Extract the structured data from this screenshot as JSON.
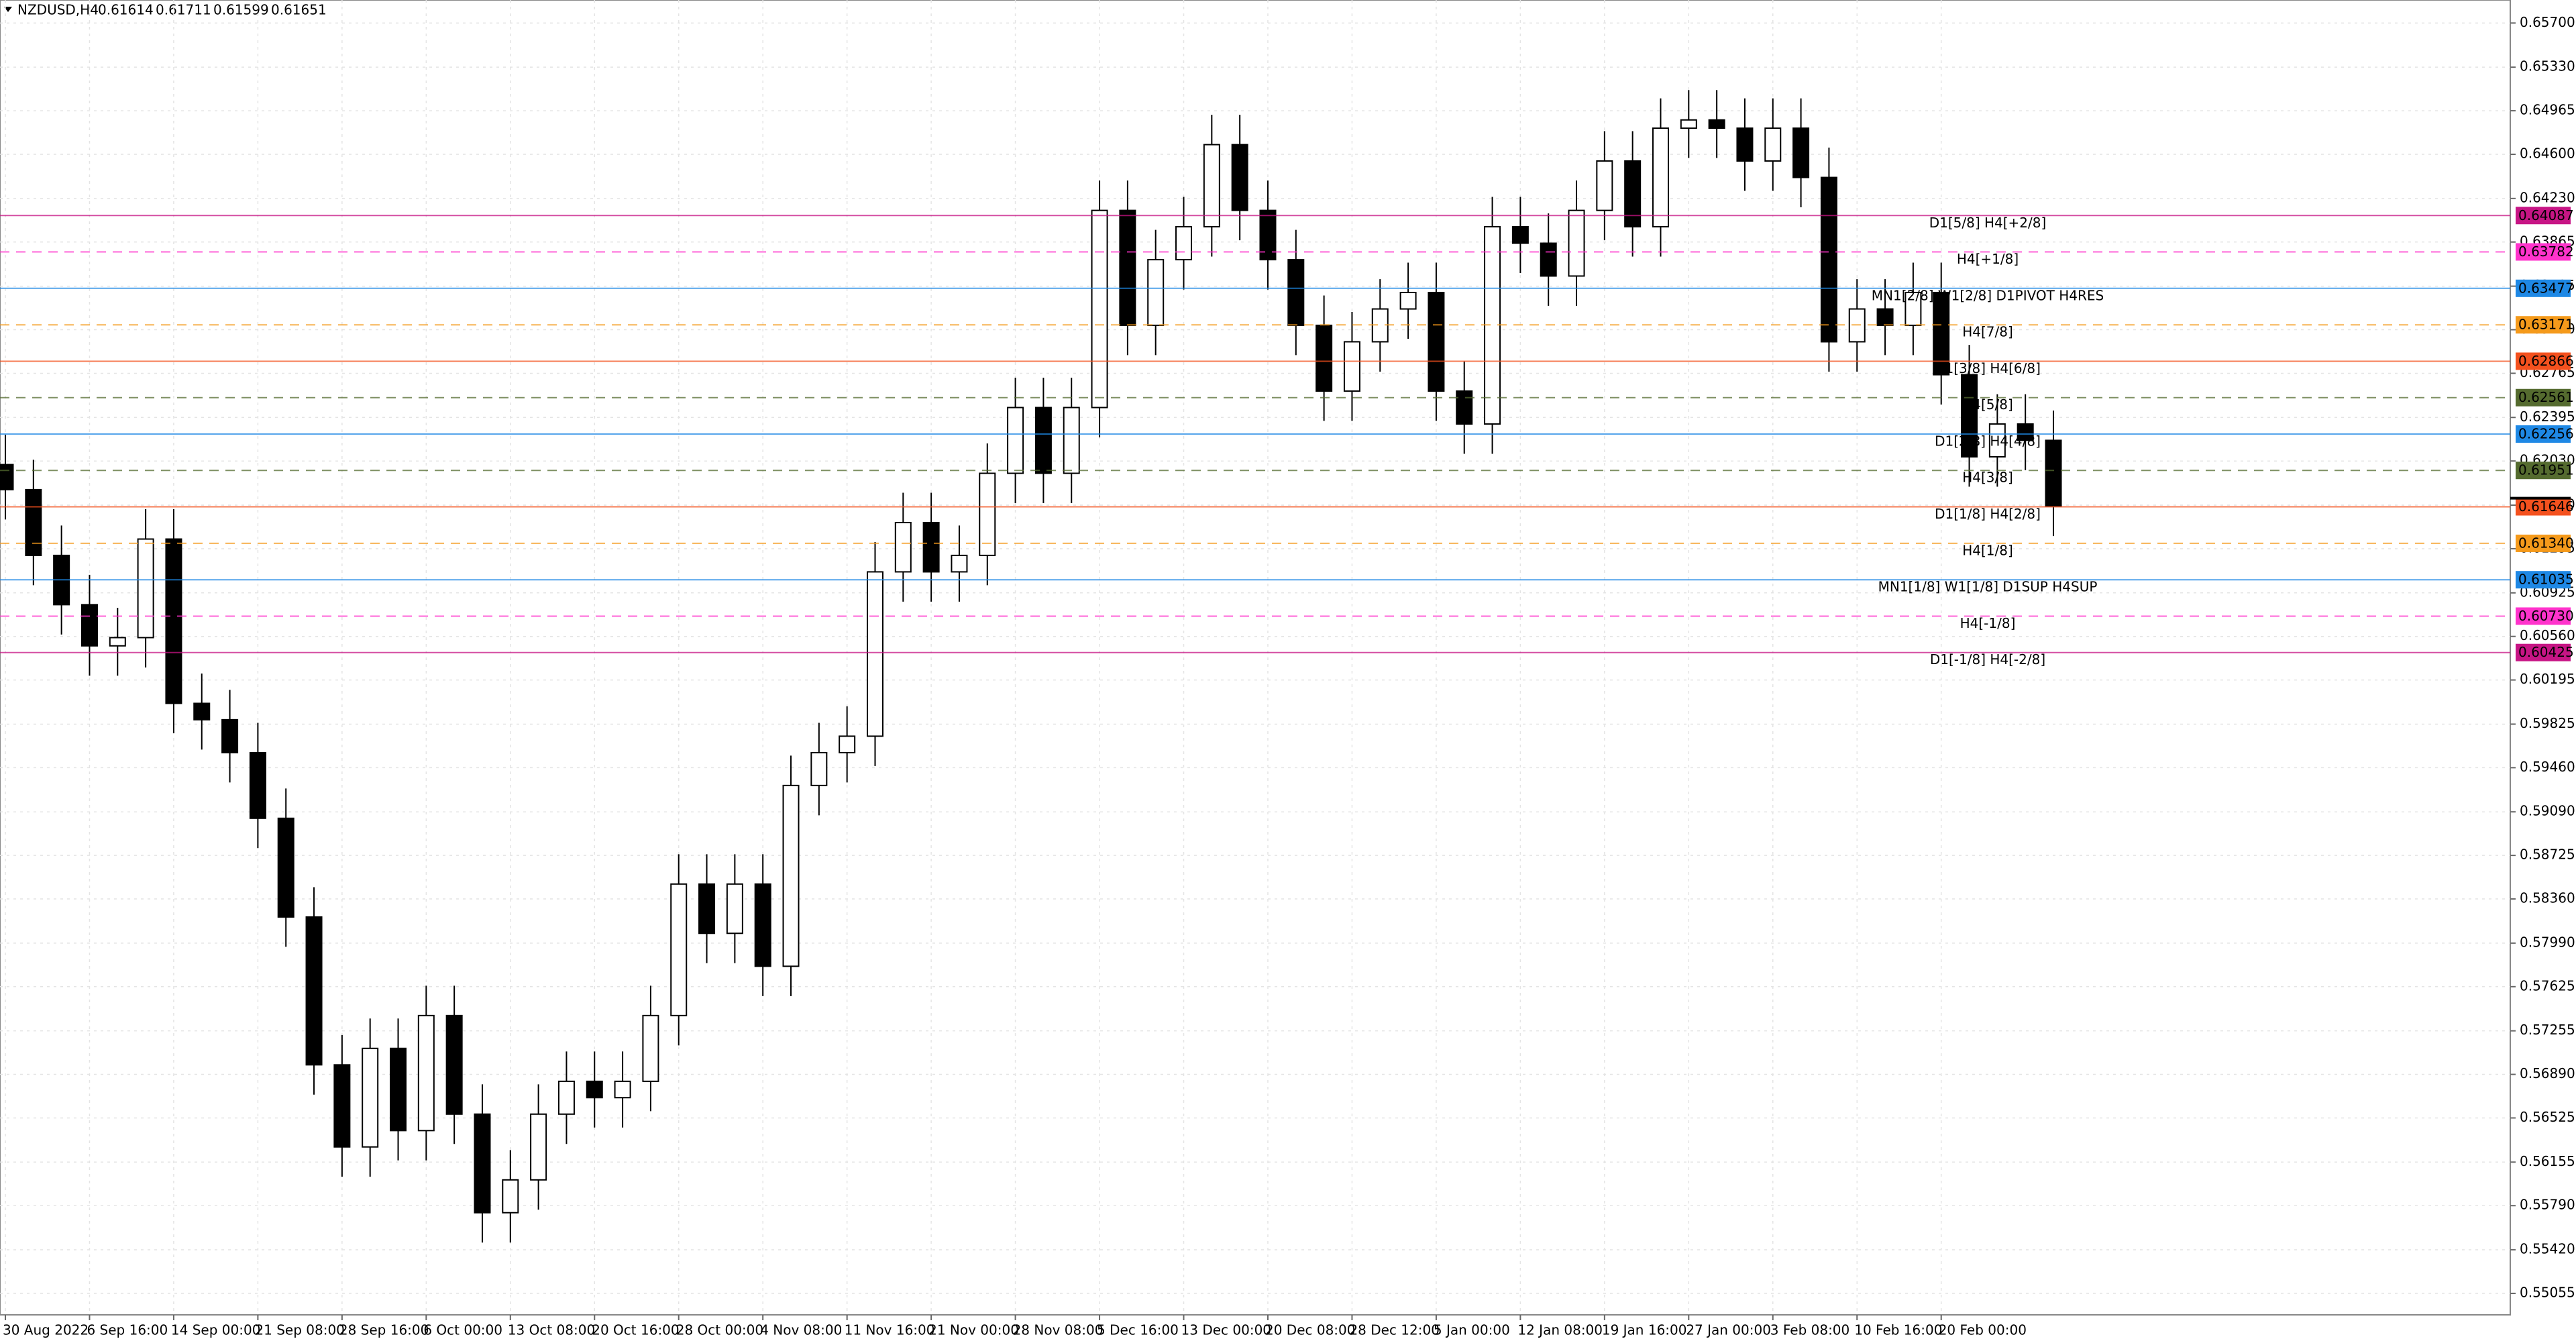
{
  "header": {
    "symbol": "NZDUSD,H4",
    "open": 0.61614,
    "high": 0.61711,
    "low": 0.61599,
    "close": 0.61651
  },
  "chart_data": {
    "type": "candlestick",
    "categories": [
      "30 Aug 2022",
      null,
      null,
      "6 Sep 16:00",
      null,
      null,
      "14 Sep 00:00",
      null,
      null,
      "21 Sep 08:00",
      null,
      null,
      "28 Sep 16:00",
      null,
      null,
      "6 Oct 00:00",
      null,
      null,
      "13 Oct 08:00",
      null,
      null,
      "20 Oct 16:00",
      null,
      null,
      "28 Oct 00:00",
      null,
      null,
      "4 Nov 08:00",
      null,
      null,
      "11 Nov 16:00",
      null,
      null,
      "21 Nov 00:00",
      null,
      null,
      "28 Nov 08:00",
      null,
      null,
      "5 Dec 16:00",
      null,
      null,
      "13 Dec 00:00",
      null,
      null,
      "20 Dec 08:00",
      null,
      null,
      "28 Dec 12:00",
      null,
      null,
      "5 Jan 00:00",
      null,
      null,
      "12 Jan 08:00",
      null,
      null,
      "19 Jan 16:00",
      null,
      null,
      "27 Jan 00:00",
      null,
      null,
      "3 Feb 08:00",
      null,
      null,
      "10 Feb 16:00",
      null,
      null,
      "20 Feb 00:00",
      null,
      null,
      null,
      null
    ],
    "open": [
      0.62,
      0.6179,
      0.61239,
      0.60826,
      0.60481,
      0.6055,
      0.61376,
      0.59999,
      0.59862,
      0.59586,
      0.59036,
      0.58209,
      0.5697,
      0.56282,
      0.57108,
      0.56419,
      0.57383,
      0.56557,
      0.55731,
      0.56006,
      0.56557,
      0.56832,
      0.56695,
      0.56832,
      0.57383,
      0.58485,
      0.58072,
      0.58485,
      0.57796,
      0.59311,
      0.59586,
      0.59724,
      0.61101,
      0.61514,
      0.61101,
      0.61239,
      0.61927,
      0.62478,
      0.61927,
      0.62478,
      0.6413,
      0.63167,
      0.63717,
      0.63993,
      0.64681,
      0.6413,
      0.63717,
      0.63167,
      0.62616,
      0.63029,
      0.63304,
      0.63442,
      0.62616,
      0.6234,
      0.63993,
      0.63855,
      0.6358,
      0.6413,
      0.64544,
      0.63993,
      0.64819,
      0.64888,
      0.64819,
      0.64544,
      0.64819,
      0.64406,
      0.63029,
      0.63304,
      0.63167,
      0.63442,
      0.62753,
      0.62065,
      0.6234,
      0.62203
    ],
    "high": [
      0.6225,
      0.6204,
      0.61489,
      0.61076,
      0.608,
      0.61626,
      0.61626,
      0.60249,
      0.60112,
      0.59836,
      0.59286,
      0.58459,
      0.5722,
      0.57358,
      0.57358,
      0.57633,
      0.57633,
      0.56807,
      0.56256,
      0.56807,
      0.57082,
      0.57082,
      0.57082,
      0.57633,
      0.58735,
      0.58735,
      0.58735,
      0.58735,
      0.59561,
      0.59836,
      0.59974,
      0.61351,
      0.61764,
      0.61764,
      0.61489,
      0.62177,
      0.62728,
      0.62728,
      0.62728,
      0.6438,
      0.6438,
      0.63967,
      0.64243,
      0.64931,
      0.64931,
      0.6438,
      0.63967,
      0.63417,
      0.63279,
      0.63554,
      0.63692,
      0.63692,
      0.62866,
      0.64243,
      0.64243,
      0.64105,
      0.6438,
      0.64794,
      0.64794,
      0.65069,
      0.65138,
      0.65138,
      0.65069,
      0.65069,
      0.65069,
      0.64656,
      0.63554,
      0.63554,
      0.63692,
      0.63692,
      0.63003,
      0.6259,
      0.6259,
      0.62453
    ],
    "low": [
      0.6154,
      0.60989,
      0.60576,
      0.60231,
      0.60231,
      0.603,
      0.59749,
      0.59612,
      0.59336,
      0.58786,
      0.57959,
      0.5672,
      0.56032,
      0.56032,
      0.56169,
      0.56169,
      0.56307,
      0.55481,
      0.55481,
      0.55756,
      0.56307,
      0.56445,
      0.56445,
      0.56582,
      0.57133,
      0.57822,
      0.57822,
      0.57546,
      0.57546,
      0.59061,
      0.59336,
      0.59474,
      0.60851,
      0.60851,
      0.60851,
      0.60989,
      0.61677,
      0.61677,
      0.61677,
      0.62228,
      0.62917,
      0.62917,
      0.63467,
      0.63743,
      0.6388,
      0.63467,
      0.62917,
      0.62366,
      0.62366,
      0.62779,
      0.63054,
      0.62366,
      0.6209,
      0.6209,
      0.63605,
      0.6333,
      0.6333,
      0.6388,
      0.63743,
      0.63743,
      0.64569,
      0.64569,
      0.64294,
      0.64294,
      0.64156,
      0.62779,
      0.62779,
      0.62917,
      0.62917,
      0.62503,
      0.61815,
      0.61815,
      0.61953,
      0.61401
    ],
    "close": [
      0.6179,
      0.61239,
      0.60826,
      0.60481,
      0.6055,
      0.61376,
      0.59999,
      0.59862,
      0.59586,
      0.59036,
      0.58209,
      0.5697,
      0.56282,
      0.57108,
      0.56419,
      0.57383,
      0.56557,
      0.55731,
      0.56006,
      0.56557,
      0.56832,
      0.56695,
      0.56832,
      0.57383,
      0.58485,
      0.58072,
      0.58485,
      0.57796,
      0.59311,
      0.59586,
      0.59724,
      0.61101,
      0.61514,
      0.61101,
      0.61239,
      0.61927,
      0.62478,
      0.61927,
      0.62478,
      0.6413,
      0.63167,
      0.63717,
      0.63993,
      0.64681,
      0.6413,
      0.63717,
      0.63167,
      0.62616,
      0.63029,
      0.63304,
      0.63442,
      0.62616,
      0.6234,
      0.63993,
      0.63855,
      0.6358,
      0.6413,
      0.64544,
      0.63993,
      0.64819,
      0.64888,
      0.64819,
      0.64544,
      0.64819,
      0.64406,
      0.63029,
      0.63304,
      0.63167,
      0.63442,
      0.62753,
      0.62065,
      0.6234,
      0.62203,
      0.61651
    ],
    "ylim": [
      0.54875,
      0.65893
    ],
    "yticks": [
      {
        "value": 0.657,
        "label": "0.65700"
      },
      {
        "value": 0.6533,
        "label": "0.65330"
      },
      {
        "value": 0.64965,
        "label": "0.64965"
      },
      {
        "value": 0.646,
        "label": "0.64600"
      },
      {
        "value": 0.6423,
        "label": "0.64230"
      },
      {
        "value": 0.63865,
        "label": "0.63865"
      },
      {
        "value": 0.63495,
        "label": "0.63495"
      },
      {
        "value": 0.6313,
        "label": "0.63130"
      },
      {
        "value": 0.62765,
        "label": "0.62765"
      },
      {
        "value": 0.62395,
        "label": "0.62395"
      },
      {
        "value": 0.6203,
        "label": "0.62030"
      },
      {
        "value": 0.6166,
        "label": "0.61660"
      },
      {
        "value": 0.61295,
        "label": "0.61295"
      },
      {
        "value": 0.60925,
        "label": "0.60925"
      },
      {
        "value": 0.6056,
        "label": "0.60560"
      },
      {
        "value": 0.60195,
        "label": "0.60195"
      },
      {
        "value": 0.59825,
        "label": "0.59825"
      },
      {
        "value": 0.5946,
        "label": "0.59460"
      },
      {
        "value": 0.5909,
        "label": "0.59090"
      },
      {
        "value": 0.58725,
        "label": "0.58725"
      },
      {
        "value": 0.5836,
        "label": "0.58360"
      },
      {
        "value": 0.5799,
        "label": "0.57990"
      },
      {
        "value": 0.57625,
        "label": "0.57625"
      },
      {
        "value": 0.57255,
        "label": "0.57255"
      },
      {
        "value": 0.5689,
        "label": "0.56890"
      },
      {
        "value": 0.56525,
        "label": "0.56525"
      },
      {
        "value": 0.56155,
        "label": "0.56155"
      },
      {
        "value": 0.5579,
        "label": "0.55790"
      },
      {
        "value": 0.5542,
        "label": "0.55420"
      },
      {
        "value": 0.55055,
        "label": "0.55055"
      }
    ],
    "grid": true,
    "levels": [
      {
        "name": "D1[5/8] H4[+2/8]",
        "value": 0.64087,
        "value_label": "0.64087",
        "color": "#c71585",
        "dashed": false
      },
      {
        "name": "H4[+1/8]",
        "value": 0.63782,
        "value_label": "0.63782",
        "color": "#ff33cc",
        "dashed": true
      },
      {
        "name": "MN1[2/8] W1[2/8] D1PIVOT H4RES",
        "value": 0.63477,
        "value_label": "0.63477",
        "color": "#1e88e5",
        "dashed": false
      },
      {
        "name": "H4[7/8]",
        "value": 0.63171,
        "value_label": "0.63171",
        "color": "#f59a1b",
        "dashed": true
      },
      {
        "name": "D1[3/8] H4[6/8]",
        "value": 0.62866,
        "value_label": "0.62866",
        "color": "#f4511e",
        "dashed": false
      },
      {
        "name": "H4[5/8]",
        "value": 0.62561,
        "value_label": "0.62561",
        "color": "#556b2f",
        "dashed": true
      },
      {
        "name": "D1[2/8] H4[4/8]",
        "value": 0.62256,
        "value_label": "0.62256",
        "color": "#1e88e5",
        "dashed": false
      },
      {
        "name": "H4[3/8]",
        "value": 0.61951,
        "value_label": "0.61951",
        "color": "#556b2f",
        "dashed": true
      },
      {
        "name": "D1[1/8] H4[2/8]",
        "value": 0.61646,
        "value_label": "0.61646",
        "color": "#f4511e",
        "dashed": false
      },
      {
        "name": "H4[1/8]",
        "value": 0.6134,
        "value_label": "0.61340",
        "color": "#f59a1b",
        "dashed": true
      },
      {
        "name": "MN1[1/8] W1[1/8] D1SUP H4SUP",
        "value": 0.61035,
        "value_label": "0.61035",
        "color": "#1e88e5",
        "dashed": false
      },
      {
        "name": "H4[-1/8]",
        "value": 0.6073,
        "value_label": "0.60730",
        "color": "#ff33cc",
        "dashed": true
      },
      {
        "name": "D1[-1/8] H4[-2/8]",
        "value": 0.60425,
        "value_label": "0.60425",
        "color": "#c71585",
        "dashed": false
      }
    ]
  }
}
